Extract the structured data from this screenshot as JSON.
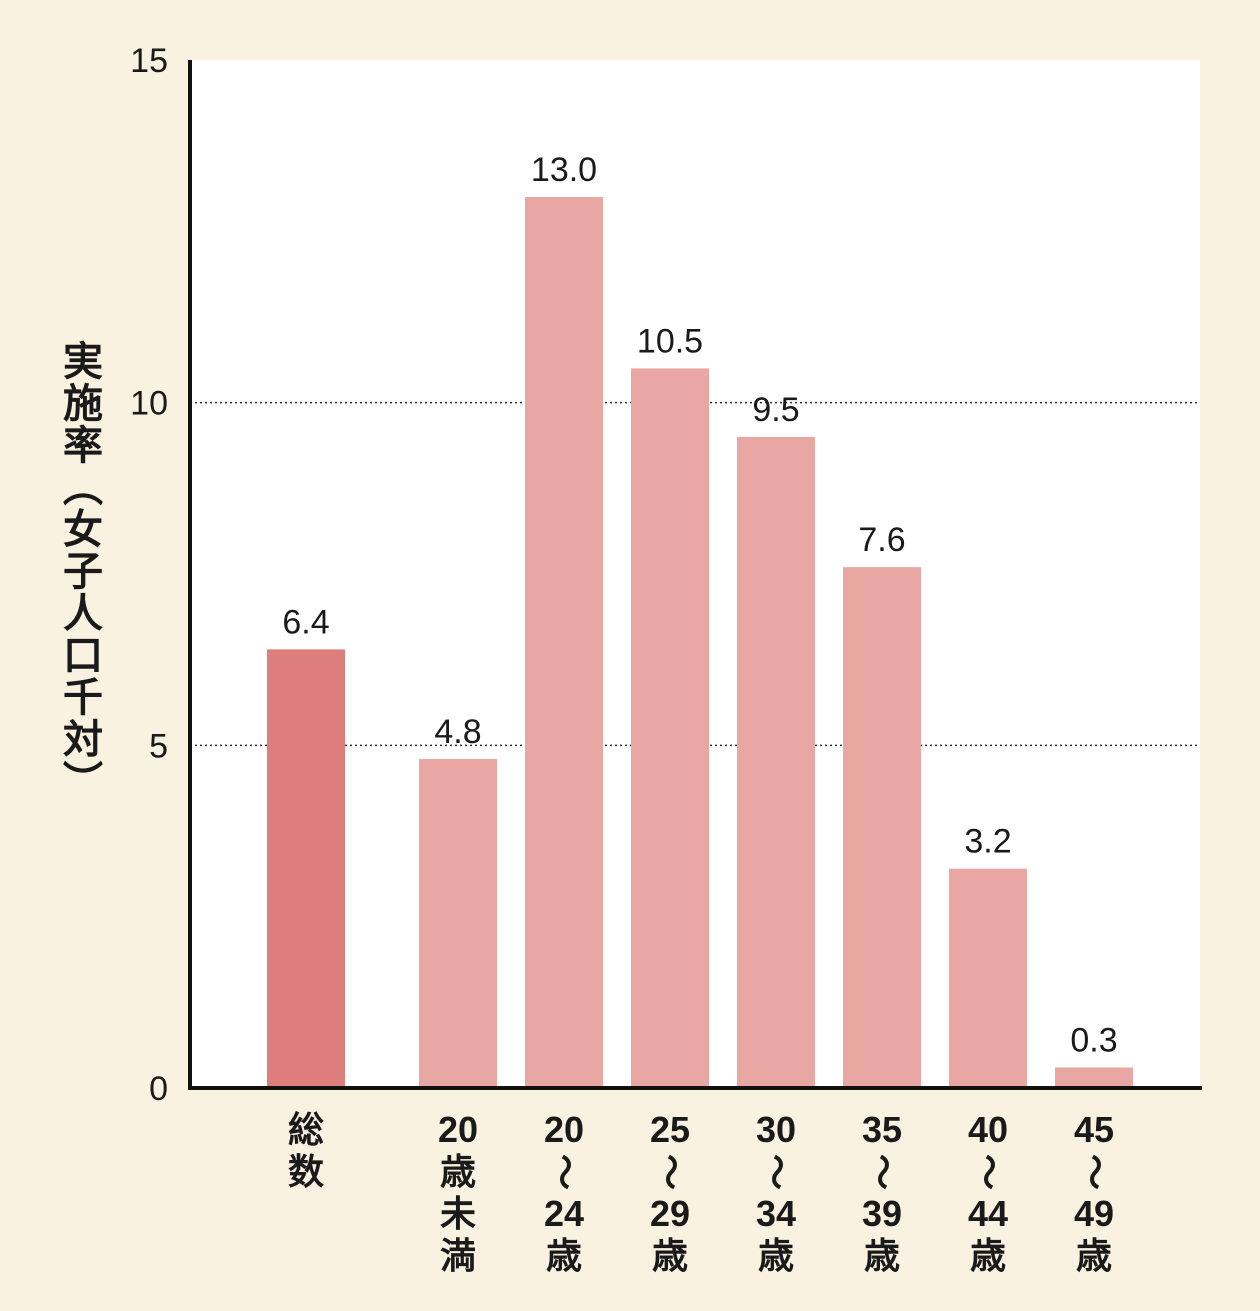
{
  "chart_data": {
    "type": "bar",
    "ylabel": "実施率（女子人口千対）",
    "ylim": [
      0,
      15
    ],
    "yticks": [
      "0",
      "5",
      "10",
      "15"
    ],
    "grid": "dotted horizontal at 5 and 10",
    "categories": [
      {
        "lines": [
          "総",
          "数"
        ]
      },
      {
        "lines": [
          "20",
          "歳",
          "未",
          "満"
        ]
      },
      {
        "lines": [
          "20",
          "〜",
          "24",
          "歳"
        ]
      },
      {
        "lines": [
          "25",
          "〜",
          "29",
          "歳"
        ]
      },
      {
        "lines": [
          "30",
          "〜",
          "34",
          "歳"
        ]
      },
      {
        "lines": [
          "35",
          "〜",
          "39",
          "歳"
        ]
      },
      {
        "lines": [
          "40",
          "〜",
          "44",
          "歳"
        ]
      },
      {
        "lines": [
          "45",
          "〜",
          "49",
          "歳"
        ]
      }
    ],
    "values": [
      6.4,
      4.8,
      13.0,
      10.5,
      9.5,
      7.6,
      3.2,
      0.3
    ],
    "value_labels": [
      "6.4",
      "4.8",
      "13.0",
      "10.5",
      "9.5",
      "7.6",
      "3.2",
      "0.3"
    ],
    "colors": {
      "background": "#faf2e1",
      "plot_background": "#ffffff",
      "total_bar": "#dd7e7c",
      "age_bar": "#e8a7a3",
      "axis": "#111111"
    }
  }
}
